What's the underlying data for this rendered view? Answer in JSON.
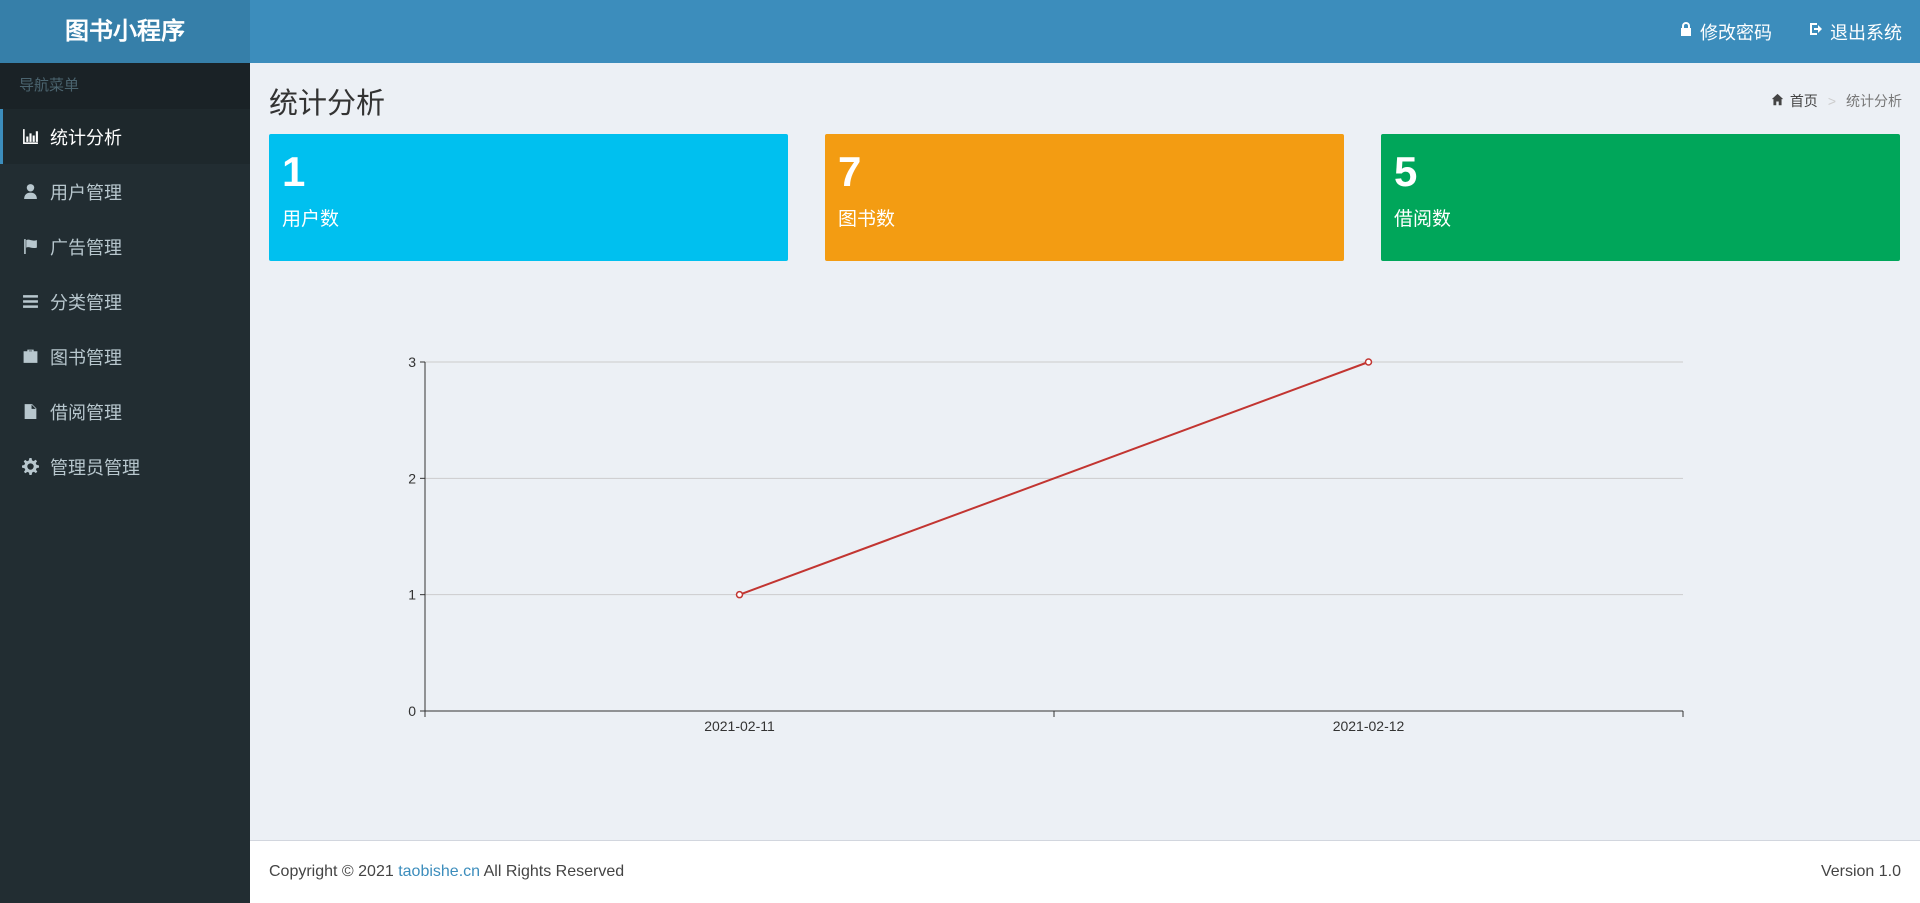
{
  "app": {
    "title": "图书小程序"
  },
  "header": {
    "change_password": "修改密码",
    "logout": "退出系统"
  },
  "sidebar": {
    "heading": "导航菜单",
    "items": [
      {
        "label": "统计分析",
        "icon": "bar-chart-icon",
        "active": true
      },
      {
        "label": "用户管理",
        "icon": "user-icon",
        "active": false
      },
      {
        "label": "广告管理",
        "icon": "flag-icon",
        "active": false
      },
      {
        "label": "分类管理",
        "icon": "list-icon",
        "active": false
      },
      {
        "label": "图书管理",
        "icon": "briefcase-icon",
        "active": false
      },
      {
        "label": "借阅管理",
        "icon": "file-icon",
        "active": false
      },
      {
        "label": "管理员管理",
        "icon": "gear-icon",
        "active": false
      }
    ]
  },
  "page": {
    "title": "统计分析",
    "breadcrumb": {
      "home": "首页",
      "current": "统计分析"
    }
  },
  "stats": [
    {
      "value": "1",
      "label": "用户数",
      "color": "#00c0ef"
    },
    {
      "value": "7",
      "label": "图书数",
      "color": "#f39c12"
    },
    {
      "value": "5",
      "label": "借阅数",
      "color": "#00a65a"
    }
  ],
  "chart_data": {
    "type": "line",
    "categories": [
      "2021-02-11",
      "2021-02-12"
    ],
    "series": [
      {
        "values": [
          1,
          3
        ],
        "color": "#c23531"
      }
    ],
    "ylim": [
      0,
      3
    ],
    "yticks": [
      0,
      1,
      2,
      3
    ],
    "grid": true
  },
  "footer": {
    "copyright_prefix": "Copyright © 2021",
    "site": "taobishe.cn",
    "rights": "All Rights Reserved",
    "version": "Version 1.0"
  }
}
